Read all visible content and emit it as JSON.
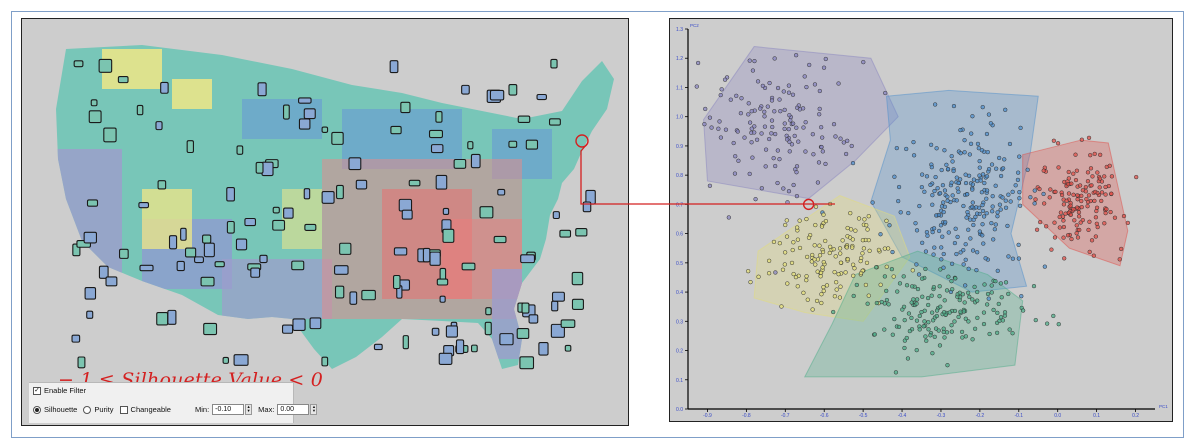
{
  "annotation": {
    "silhouette_range": "−.1 ≤ Silhouette Value < 0"
  },
  "filter_panel": {
    "enable_filter_label": "Enable Filter",
    "enable_filter_checked": true,
    "options": [
      {
        "label": "Silhouette",
        "selected": true
      },
      {
        "label": "Purity",
        "selected": false
      }
    ],
    "changeable_label": "Changeable",
    "changeable_checked": false,
    "min_label": "Min:",
    "min_value": "-0.10",
    "max_label": "Max:",
    "max_value": "0.00"
  },
  "chart_data": {
    "type": "scatter",
    "title": "",
    "xlabel": "PC1",
    "ylabel": "PC2",
    "xlim": [
      -0.95,
      0.25
    ],
    "ylim": [
      0.0,
      1.3
    ],
    "x_ticks": [
      "-0.9",
      "-0.8",
      "-0.7",
      "-0.6",
      "-0.5",
      "-0.4",
      "-0.3",
      "-0.2",
      "-0.1",
      "0.0",
      "0.1",
      "0.2"
    ],
    "y_ticks": [
      "0.0",
      "0.1",
      "0.2",
      "0.3",
      "0.4",
      "0.5",
      "0.6",
      "0.7",
      "0.8",
      "0.9",
      "1.0",
      "1.1",
      "1.2",
      "1.3"
    ],
    "highlighted_point": {
      "x": -0.64,
      "y": 0.7
    },
    "clusters": [
      {
        "color": "#8a86c0",
        "hull": [
          [
            -0.78,
            1.24
          ],
          [
            -0.48,
            1.2
          ],
          [
            -0.41,
            1.0
          ],
          [
            -0.52,
            0.85
          ],
          [
            -0.64,
            0.72
          ],
          [
            -0.9,
            0.78
          ],
          [
            -0.91,
            0.99
          ]
        ],
        "center": [
          -0.72,
          0.98
        ],
        "spread": [
          0.09,
          0.12
        ],
        "count": 150
      },
      {
        "color": "#4f8fcc",
        "hull": [
          [
            -0.44,
            1.07
          ],
          [
            -0.28,
            1.09
          ],
          [
            -0.05,
            1.07
          ],
          [
            -0.07,
            0.88
          ],
          [
            -0.12,
            0.6
          ],
          [
            -0.08,
            0.42
          ],
          [
            -0.22,
            0.4
          ],
          [
            -0.4,
            0.52
          ],
          [
            -0.48,
            0.71
          ],
          [
            -0.43,
            0.92
          ]
        ],
        "center": [
          -0.24,
          0.72
        ],
        "spread": [
          0.09,
          0.14
        ],
        "count": 240
      },
      {
        "color": "#e0504a",
        "hull": [
          [
            -0.09,
            0.87
          ],
          [
            0.06,
            0.92
          ],
          [
            0.13,
            0.91
          ],
          [
            0.18,
            0.61
          ],
          [
            0.16,
            0.49
          ],
          [
            0.03,
            0.55
          ],
          [
            -0.09,
            0.7
          ]
        ],
        "center": [
          0.06,
          0.71
        ],
        "spread": [
          0.05,
          0.08
        ],
        "count": 150
      },
      {
        "color": "#e3de7a",
        "hull": [
          [
            -0.77,
            0.54
          ],
          [
            -0.56,
            0.73
          ],
          [
            -0.42,
            0.66
          ],
          [
            -0.38,
            0.52
          ],
          [
            -0.5,
            0.3
          ],
          [
            -0.65,
            0.33
          ],
          [
            -0.78,
            0.38
          ]
        ],
        "center": [
          -0.58,
          0.52
        ],
        "spread": [
          0.08,
          0.08
        ],
        "count": 140
      },
      {
        "color": "#4fae8a",
        "hull": [
          [
            -0.52,
            0.46
          ],
          [
            -0.36,
            0.54
          ],
          [
            -0.18,
            0.46
          ],
          [
            -0.09,
            0.37
          ],
          [
            -0.11,
            0.15
          ],
          [
            -0.35,
            0.11
          ],
          [
            -0.65,
            0.11
          ],
          [
            -0.58,
            0.29
          ]
        ],
        "center": [
          -0.3,
          0.33
        ],
        "spread": [
          0.1,
          0.07
        ],
        "count": 170
      }
    ]
  }
}
